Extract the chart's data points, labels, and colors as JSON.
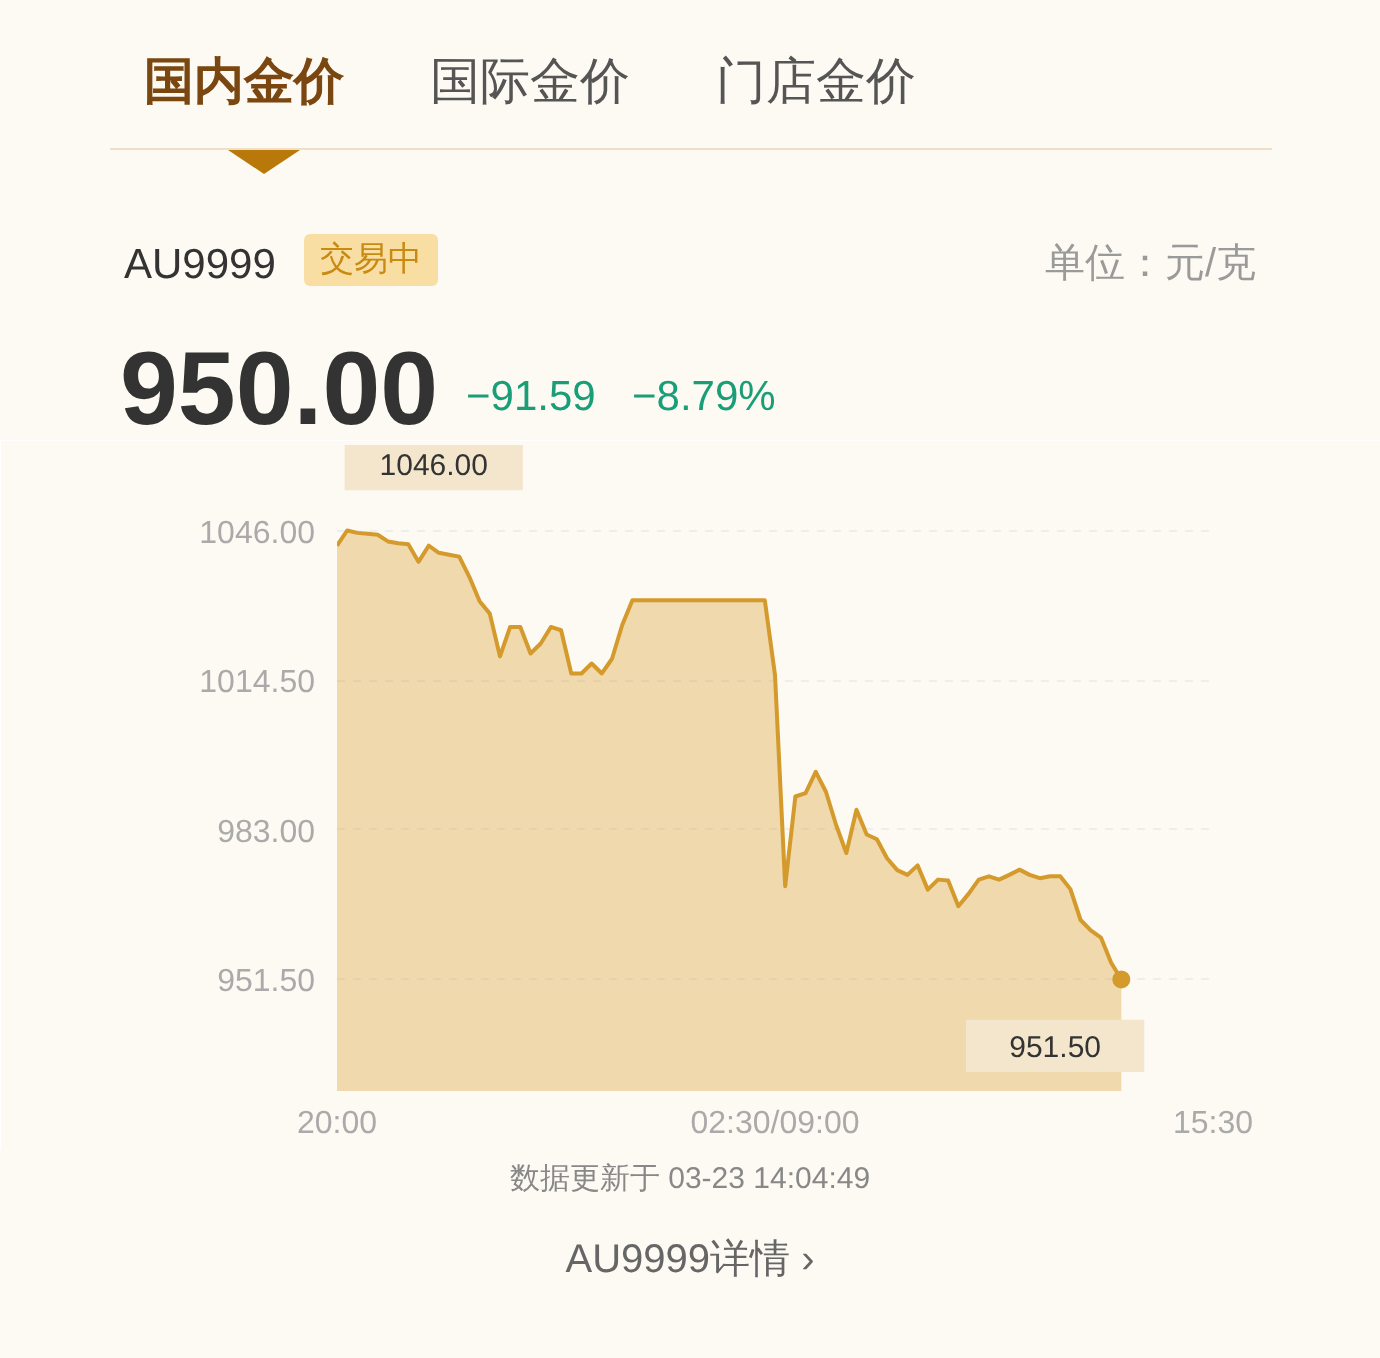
{
  "chart_data": {
    "type": "area",
    "title": "AU9999",
    "ylabel": "单位：元/克",
    "annotations": [
      "国内金价",
      "国际金价",
      "门店金价",
      "交易中",
      "950.00",
      "−91.59",
      "−8.79%",
      "1046.00",
      "951.50",
      "数据更新于 03-23 14:04:49",
      "AU9999详情",
      "›"
    ],
    "categories": [
      "20:00",
      null,
      null,
      null,
      null,
      null,
      null,
      null,
      null,
      null,
      null,
      null,
      null,
      null,
      null,
      null,
      null,
      null,
      null,
      null,
      null,
      null,
      null,
      null,
      null,
      null,
      null,
      null,
      null,
      null,
      null,
      null,
      null,
      null,
      null,
      null,
      null,
      null,
      null,
      null,
      null,
      null,
      null,
      "02:30/09:00",
      null,
      null,
      null,
      null,
      null,
      null,
      null,
      null,
      null,
      null,
      null,
      null,
      null,
      null,
      null,
      null,
      null,
      null,
      null,
      null,
      null,
      null,
      null,
      null,
      null,
      null,
      null,
      null,
      null,
      null,
      null,
      null,
      null,
      null,
      null,
      null,
      null,
      null,
      null,
      null,
      null,
      null,
      "15:30"
    ],
    "series": [
      {
        "color": "#d49a2c",
        "values": [
          1042.8,
          1046,
          1045.5,
          1045.3,
          1045.1,
          1043.7,
          1043.3,
          1043.1,
          1039.4,
          1042.8,
          1041.3,
          1040.9,
          1040.5,
          1036.2,
          1031.1,
          1028.5,
          1019.5,
          1025.7,
          1025.7,
          1020.1,
          1022.2,
          1025.7,
          1025,
          1015.9,
          1015.9,
          1018,
          1015.9,
          1019,
          1026.1,
          1031.3,
          1031.3,
          1031.3,
          1031.3,
          1031.3,
          1031.3,
          1031.3,
          1031.3,
          1031.3,
          1031.3,
          1031.3,
          1031.3,
          1031.3,
          1031.3,
          1015.6,
          971.1,
          990,
          990.7,
          995.2,
          991,
          984,
          978.1,
          987.2,
          982,
          981,
          977,
          974.5,
          973.5,
          975.5,
          970.4,
          972.5,
          972.3,
          966.9,
          969.5,
          972.5,
          973.2,
          972.5,
          973.5,
          974.6,
          973.5,
          972.8,
          973.2,
          973.2,
          970.5,
          964,
          961.8,
          960.3,
          955,
          951.5,
          null,
          null,
          null,
          null,
          null,
          null,
          null,
          null,
          null
        ]
      }
    ],
    "ylim": [
      928,
      1064
    ],
    "yticks": [
      {
        "value": 1046,
        "label": "1046.00"
      },
      {
        "value": 1014.5,
        "label": "1014.50"
      },
      {
        "value": 983,
        "label": "983.00"
      },
      {
        "value": 951.5,
        "label": "951.50"
      }
    ],
    "grid": "y"
  }
}
